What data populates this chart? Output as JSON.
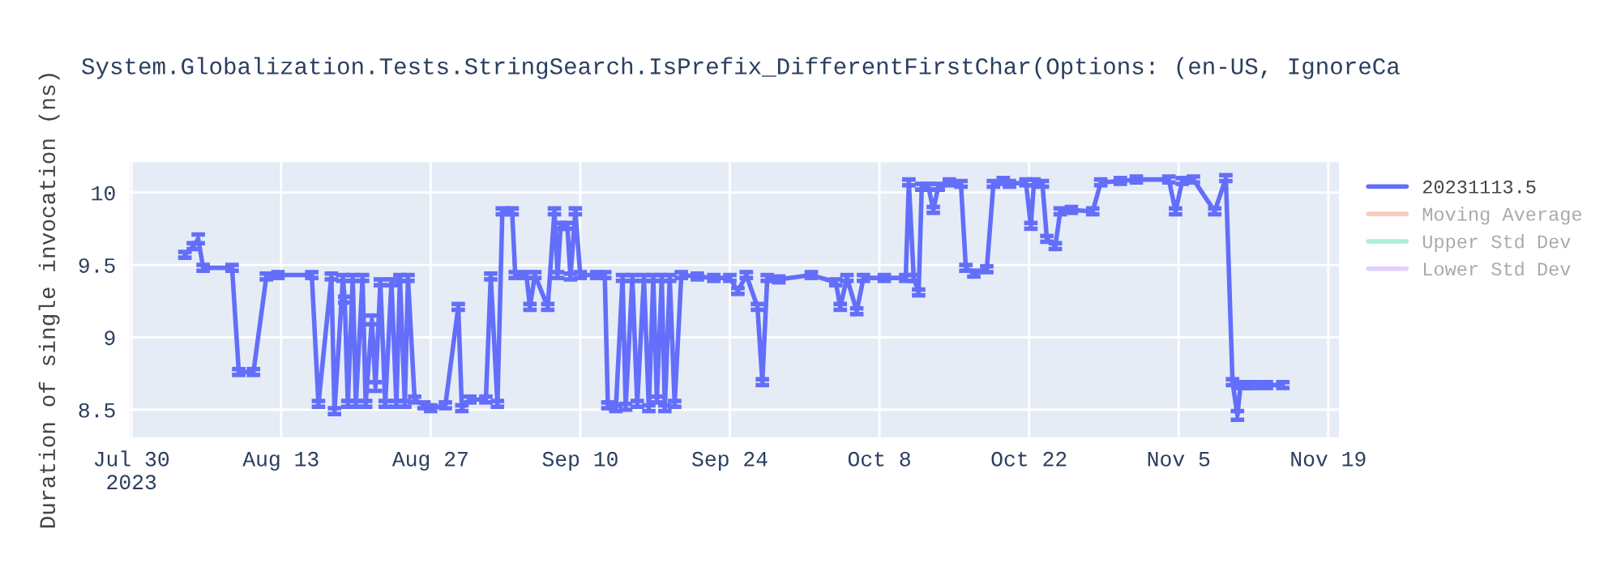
{
  "chart_data": {
    "type": "line",
    "title": "System.Globalization.Tests.StringSearch.IsPrefix_DifferentFirstChar(Options: (en-US, IgnoreCa",
    "ylabel": "Duration of single invocation (ns)",
    "x": [
      "2023-08-04T00:00",
      "2023-08-04T19:00",
      "2023-08-05T06:00",
      "2023-08-05T17:00",
      "2023-08-08T10:00",
      "2023-08-09T01:00",
      "2023-08-10T10:00",
      "2023-08-11T15:00",
      "2023-08-12T17:00",
      "2023-08-15T21:00",
      "2023-08-16T12:00",
      "2023-08-17T17:00",
      "2023-08-18T00:00",
      "2023-08-18T19:00",
      "2023-08-18T23:00",
      "2023-08-19T06:00",
      "2023-08-19T17:00",
      "2023-08-20T00:00",
      "2023-08-20T15:00",
      "2023-08-20T22:00",
      "2023-08-21T12:00",
      "2023-08-21T20:00",
      "2023-08-22T07:00",
      "2023-08-22T18:00",
      "2023-08-23T08:00",
      "2023-08-23T19:00",
      "2023-08-24T03:00",
      "2023-08-24T14:00",
      "2023-08-24T21:00",
      "2023-08-25T12:00",
      "2023-08-26T09:00",
      "2023-08-27T00:00",
      "2023-08-28T09:00",
      "2023-08-29T14:00",
      "2023-08-29T22:00",
      "2023-08-30T16:00",
      "2023-09-01T04:00",
      "2023-09-01T15:00",
      "2023-09-02T06:00",
      "2023-09-02T17:00",
      "2023-09-03T15:00",
      "2023-09-03T22:00",
      "2023-09-04T23:00",
      "2023-09-05T07:00",
      "2023-09-05T18:00",
      "2023-09-06T23:00",
      "2023-09-07T14:00",
      "2023-09-07T21:00",
      "2023-09-08T04:00",
      "2023-09-08T19:00",
      "2023-09-09T02:00",
      "2023-09-09T13:00",
      "2023-09-10T00:00",
      "2023-09-11T13:00",
      "2023-09-12T07:00",
      "2023-09-12T14:00",
      "2023-09-13T08:00",
      "2023-09-13T23:00",
      "2023-09-14T06:00",
      "2023-09-14T21:00",
      "2023-09-15T08:00",
      "2023-09-15T23:00",
      "2023-09-16T10:00",
      "2023-09-16T20:00",
      "2023-09-17T04:00",
      "2023-09-17T15:00",
      "2023-09-17T22:00",
      "2023-09-18T09:00",
      "2023-09-18T20:00",
      "2023-09-19T11:00",
      "2023-09-20T23:00",
      "2023-09-22T12:00",
      "2023-09-24T00:00",
      "2023-09-24T18:00",
      "2023-09-25T13:00",
      "2023-09-26T14:00",
      "2023-09-27T01:00",
      "2023-09-27T12:00",
      "2023-09-28T14:00",
      "2023-10-01T15:00",
      "2023-10-03T22:00",
      "2023-10-04T08:00",
      "2023-10-04T23:00",
      "2023-10-05T21:00",
      "2023-10-06T12:00",
      "2023-10-08T11:00",
      "2023-10-10T11:00",
      "2023-10-10T18:00",
      "2023-10-11T05:00",
      "2023-10-11T16:00",
      "2023-10-11T23:00",
      "2023-10-12T14:00",
      "2023-10-13T01:00",
      "2023-10-13T12:00",
      "2023-10-14T13:00",
      "2023-10-15T15:00",
      "2023-10-16T02:00",
      "2023-10-16T20:00",
      "2023-10-18T01:00",
      "2023-10-18T16:00",
      "2023-10-19T14:00",
      "2023-10-20T04:00",
      "2023-10-21T17:00",
      "2023-10-22T04:00",
      "2023-10-22T11:00",
      "2023-10-23T06:00",
      "2023-10-23T16:00",
      "2023-10-24T11:00",
      "2023-10-24T22:00",
      "2023-10-25T23:00",
      "2023-10-27T23:00",
      "2023-10-28T17:00",
      "2023-10-30T13:00",
      "2023-11-01T01:00",
      "2023-11-04T02:00",
      "2023-11-04T17:00",
      "2023-11-05T08:00",
      "2023-11-06T09:00",
      "2023-11-08T09:00",
      "2023-11-09T10:00",
      "2023-11-10T01:00",
      "2023-11-10T12:00",
      "2023-11-10T19:00",
      "2023-11-11T10:00",
      "2023-11-12T00:00",
      "2023-11-13T05:00",
      "2023-11-14T18:00"
    ],
    "series": [
      {
        "name": "20231113.5",
        "color": "#636efa",
        "values": [
          9.57,
          9.63,
          9.68,
          9.48,
          9.48,
          8.76,
          8.76,
          9.42,
          9.43,
          9.43,
          8.54,
          9.42,
          8.49,
          9.41,
          9.26,
          8.54,
          9.41,
          8.54,
          9.41,
          8.54,
          9.12,
          8.66,
          9.38,
          8.54,
          9.38,
          8.54,
          9.41,
          8.54,
          9.41,
          8.57,
          8.53,
          8.51,
          8.53,
          9.21,
          8.51,
          8.57,
          8.57,
          9.42,
          8.54,
          9.87,
          9.87,
          9.43,
          9.43,
          9.21,
          9.43,
          9.21,
          9.87,
          9.43,
          9.77,
          9.77,
          9.42,
          9.87,
          9.43,
          9.43,
          9.43,
          8.53,
          8.51,
          9.41,
          8.52,
          9.41,
          8.54,
          9.41,
          8.51,
          9.41,
          8.57,
          9.41,
          8.51,
          9.41,
          8.54,
          9.43,
          9.42,
          9.41,
          9.41,
          9.32,
          9.43,
          9.21,
          8.69,
          9.41,
          9.4,
          9.43,
          9.38,
          9.21,
          9.41,
          9.18,
          9.41,
          9.41,
          9.41,
          10.07,
          9.41,
          9.31,
          10.04,
          10.04,
          9.88,
          10.04,
          10.07,
          10.06,
          9.48,
          9.44,
          9.47,
          10.06,
          10.08,
          10.06,
          10.07,
          9.77,
          10.07,
          10.06,
          9.68,
          9.63,
          9.87,
          9.88,
          9.87,
          10.07,
          10.08,
          10.09,
          10.09,
          9.87,
          10.08,
          10.09,
          9.87,
          10.1,
          8.69,
          8.46,
          8.67,
          8.67,
          8.67,
          8.67,
          8.67
        ],
        "errors": [
          0.02,
          0.02,
          0.03,
          0.02,
          0.02,
          0.02,
          0.02,
          0.02,
          0.02,
          0.02,
          0.02,
          0.02,
          0.02,
          0.02,
          0.02,
          0.02,
          0.02,
          0.02,
          0.02,
          0.02,
          0.03,
          0.03,
          0.02,
          0.02,
          0.02,
          0.02,
          0.02,
          0.02,
          0.02,
          0.02,
          0.02,
          0.02,
          0.02,
          0.02,
          0.02,
          0.02,
          0.02,
          0.02,
          0.02,
          0.02,
          0.02,
          0.02,
          0.02,
          0.02,
          0.02,
          0.02,
          0.02,
          0.02,
          0.02,
          0.02,
          0.02,
          0.02,
          0.02,
          0.02,
          0.02,
          0.02,
          0.02,
          0.02,
          0.02,
          0.02,
          0.02,
          0.02,
          0.02,
          0.02,
          0.02,
          0.02,
          0.02,
          0.02,
          0.02,
          0.02,
          0.02,
          0.02,
          0.02,
          0.02,
          0.02,
          0.02,
          0.02,
          0.02,
          0.02,
          0.02,
          0.02,
          0.02,
          0.02,
          0.02,
          0.02,
          0.02,
          0.02,
          0.02,
          0.02,
          0.02,
          0.02,
          0.02,
          0.02,
          0.02,
          0.02,
          0.02,
          0.02,
          0.02,
          0.02,
          0.02,
          0.02,
          0.02,
          0.02,
          0.02,
          0.02,
          0.02,
          0.02,
          0.02,
          0.02,
          0.02,
          0.02,
          0.02,
          0.02,
          0.02,
          0.02,
          0.02,
          0.02,
          0.02,
          0.02,
          0.02,
          0.02,
          0.03,
          0.02,
          0.02,
          0.02,
          0.02,
          0.02
        ]
      },
      {
        "name": "Moving Average",
        "color": "#f8a78f",
        "values": [
          null,
          null,
          null,
          null,
          null,
          null,
          null,
          null,
          null,
          null,
          null,
          null,
          null,
          null,
          null,
          null,
          null,
          null,
          null,
          null,
          null,
          null,
          null,
          null,
          null,
          null,
          null,
          null,
          null,
          null,
          null,
          null,
          null,
          null,
          null,
          null,
          null,
          null,
          null,
          null,
          null,
          null,
          null,
          null,
          null,
          null,
          null,
          null,
          null,
          null,
          null,
          null,
          null,
          null,
          null,
          null,
          null,
          null,
          null,
          null,
          null,
          null,
          null,
          null,
          null,
          null,
          null,
          null,
          null,
          null,
          null,
          null,
          null,
          null,
          null,
          null,
          null,
          null,
          null,
          null,
          null,
          null,
          null,
          null,
          null,
          null,
          null,
          null,
          null,
          null,
          null,
          null,
          null,
          null,
          null,
          null,
          null,
          null,
          null,
          null,
          null,
          null,
          null,
          null,
          null,
          null,
          null,
          null,
          null,
          null,
          null,
          null,
          null,
          null,
          null,
          null,
          null,
          null,
          null,
          null,
          null,
          null,
          null,
          null,
          null,
          null,
          null
        ]
      },
      {
        "name": "Upper Std Dev",
        "color": "#76e3bd",
        "values": [
          null,
          null,
          null,
          null,
          null,
          null,
          null,
          null,
          null,
          null,
          null,
          null,
          null,
          null,
          null,
          null,
          null,
          null,
          null,
          null,
          null,
          null,
          null,
          null,
          null,
          null,
          null,
          null,
          null,
          null,
          null,
          null,
          null,
          null,
          null,
          null,
          null,
          null,
          null,
          null,
          null,
          null,
          null,
          null,
          null,
          null,
          null,
          null,
          null,
          null,
          null,
          null,
          null,
          null,
          null,
          null,
          null,
          null,
          null,
          null,
          null,
          null,
          null,
          null,
          null,
          null,
          null,
          null,
          null,
          null,
          null,
          null,
          null,
          null,
          null,
          null,
          null,
          null,
          null,
          null,
          null,
          null,
          null,
          null,
          null,
          null,
          null,
          null,
          null,
          null,
          null,
          null,
          null,
          null,
          null,
          null,
          null,
          null,
          null,
          null,
          null,
          null,
          null,
          null,
          null,
          null,
          null,
          null,
          null,
          null,
          null,
          null,
          null,
          null,
          null,
          null,
          null,
          null,
          null,
          null,
          null,
          null,
          null,
          null,
          null,
          null,
          null
        ]
      },
      {
        "name": "Lower Std Dev",
        "color": "#cbb1f8",
        "values": [
          null,
          null,
          null,
          null,
          null,
          null,
          null,
          null,
          null,
          null,
          null,
          null,
          null,
          null,
          null,
          null,
          null,
          null,
          null,
          null,
          null,
          null,
          null,
          null,
          null,
          null,
          null,
          null,
          null,
          null,
          null,
          null,
          null,
          null,
          null,
          null,
          null,
          null,
          null,
          null,
          null,
          null,
          null,
          null,
          null,
          null,
          null,
          null,
          null,
          null,
          null,
          null,
          null,
          null,
          null,
          null,
          null,
          null,
          null,
          null,
          null,
          null,
          null,
          null,
          null,
          null,
          null,
          null,
          null,
          null,
          null,
          null,
          null,
          null,
          null,
          null,
          null,
          null,
          null,
          null,
          null,
          null,
          null,
          null,
          null,
          null,
          null,
          null,
          null,
          null,
          null,
          null,
          null,
          null,
          null,
          null,
          null,
          null,
          null,
          null,
          null,
          null,
          null,
          null,
          null,
          null,
          null,
          null,
          null,
          null,
          null,
          null,
          null,
          null,
          null,
          null,
          null,
          null,
          null,
          null,
          null,
          null,
          null,
          null,
          null,
          null,
          null
        ]
      }
    ],
    "xlim": [
      "2023-07-29T20:00",
      "2023-11-20T00:00"
    ],
    "xticks": [
      {
        "value": "2023-07-30",
        "label": "Jul 30\n2023"
      },
      {
        "value": "2023-08-13",
        "label": "Aug 13"
      },
      {
        "value": "2023-08-27",
        "label": "Aug 27"
      },
      {
        "value": "2023-09-10",
        "label": "Sep 10"
      },
      {
        "value": "2023-09-24",
        "label": "Sep 24"
      },
      {
        "value": "2023-10-08",
        "label": "Oct 8"
      },
      {
        "value": "2023-10-22",
        "label": "Oct 22"
      },
      {
        "value": "2023-11-05",
        "label": "Nov 5"
      },
      {
        "value": "2023-11-19",
        "label": "Nov 19"
      }
    ],
    "ylim": [
      8.31,
      10.21
    ],
    "yticks": [
      8.5,
      9,
      9.5,
      10
    ],
    "grid": true,
    "legend": "right",
    "line_style": "solid",
    "marker": "none"
  }
}
